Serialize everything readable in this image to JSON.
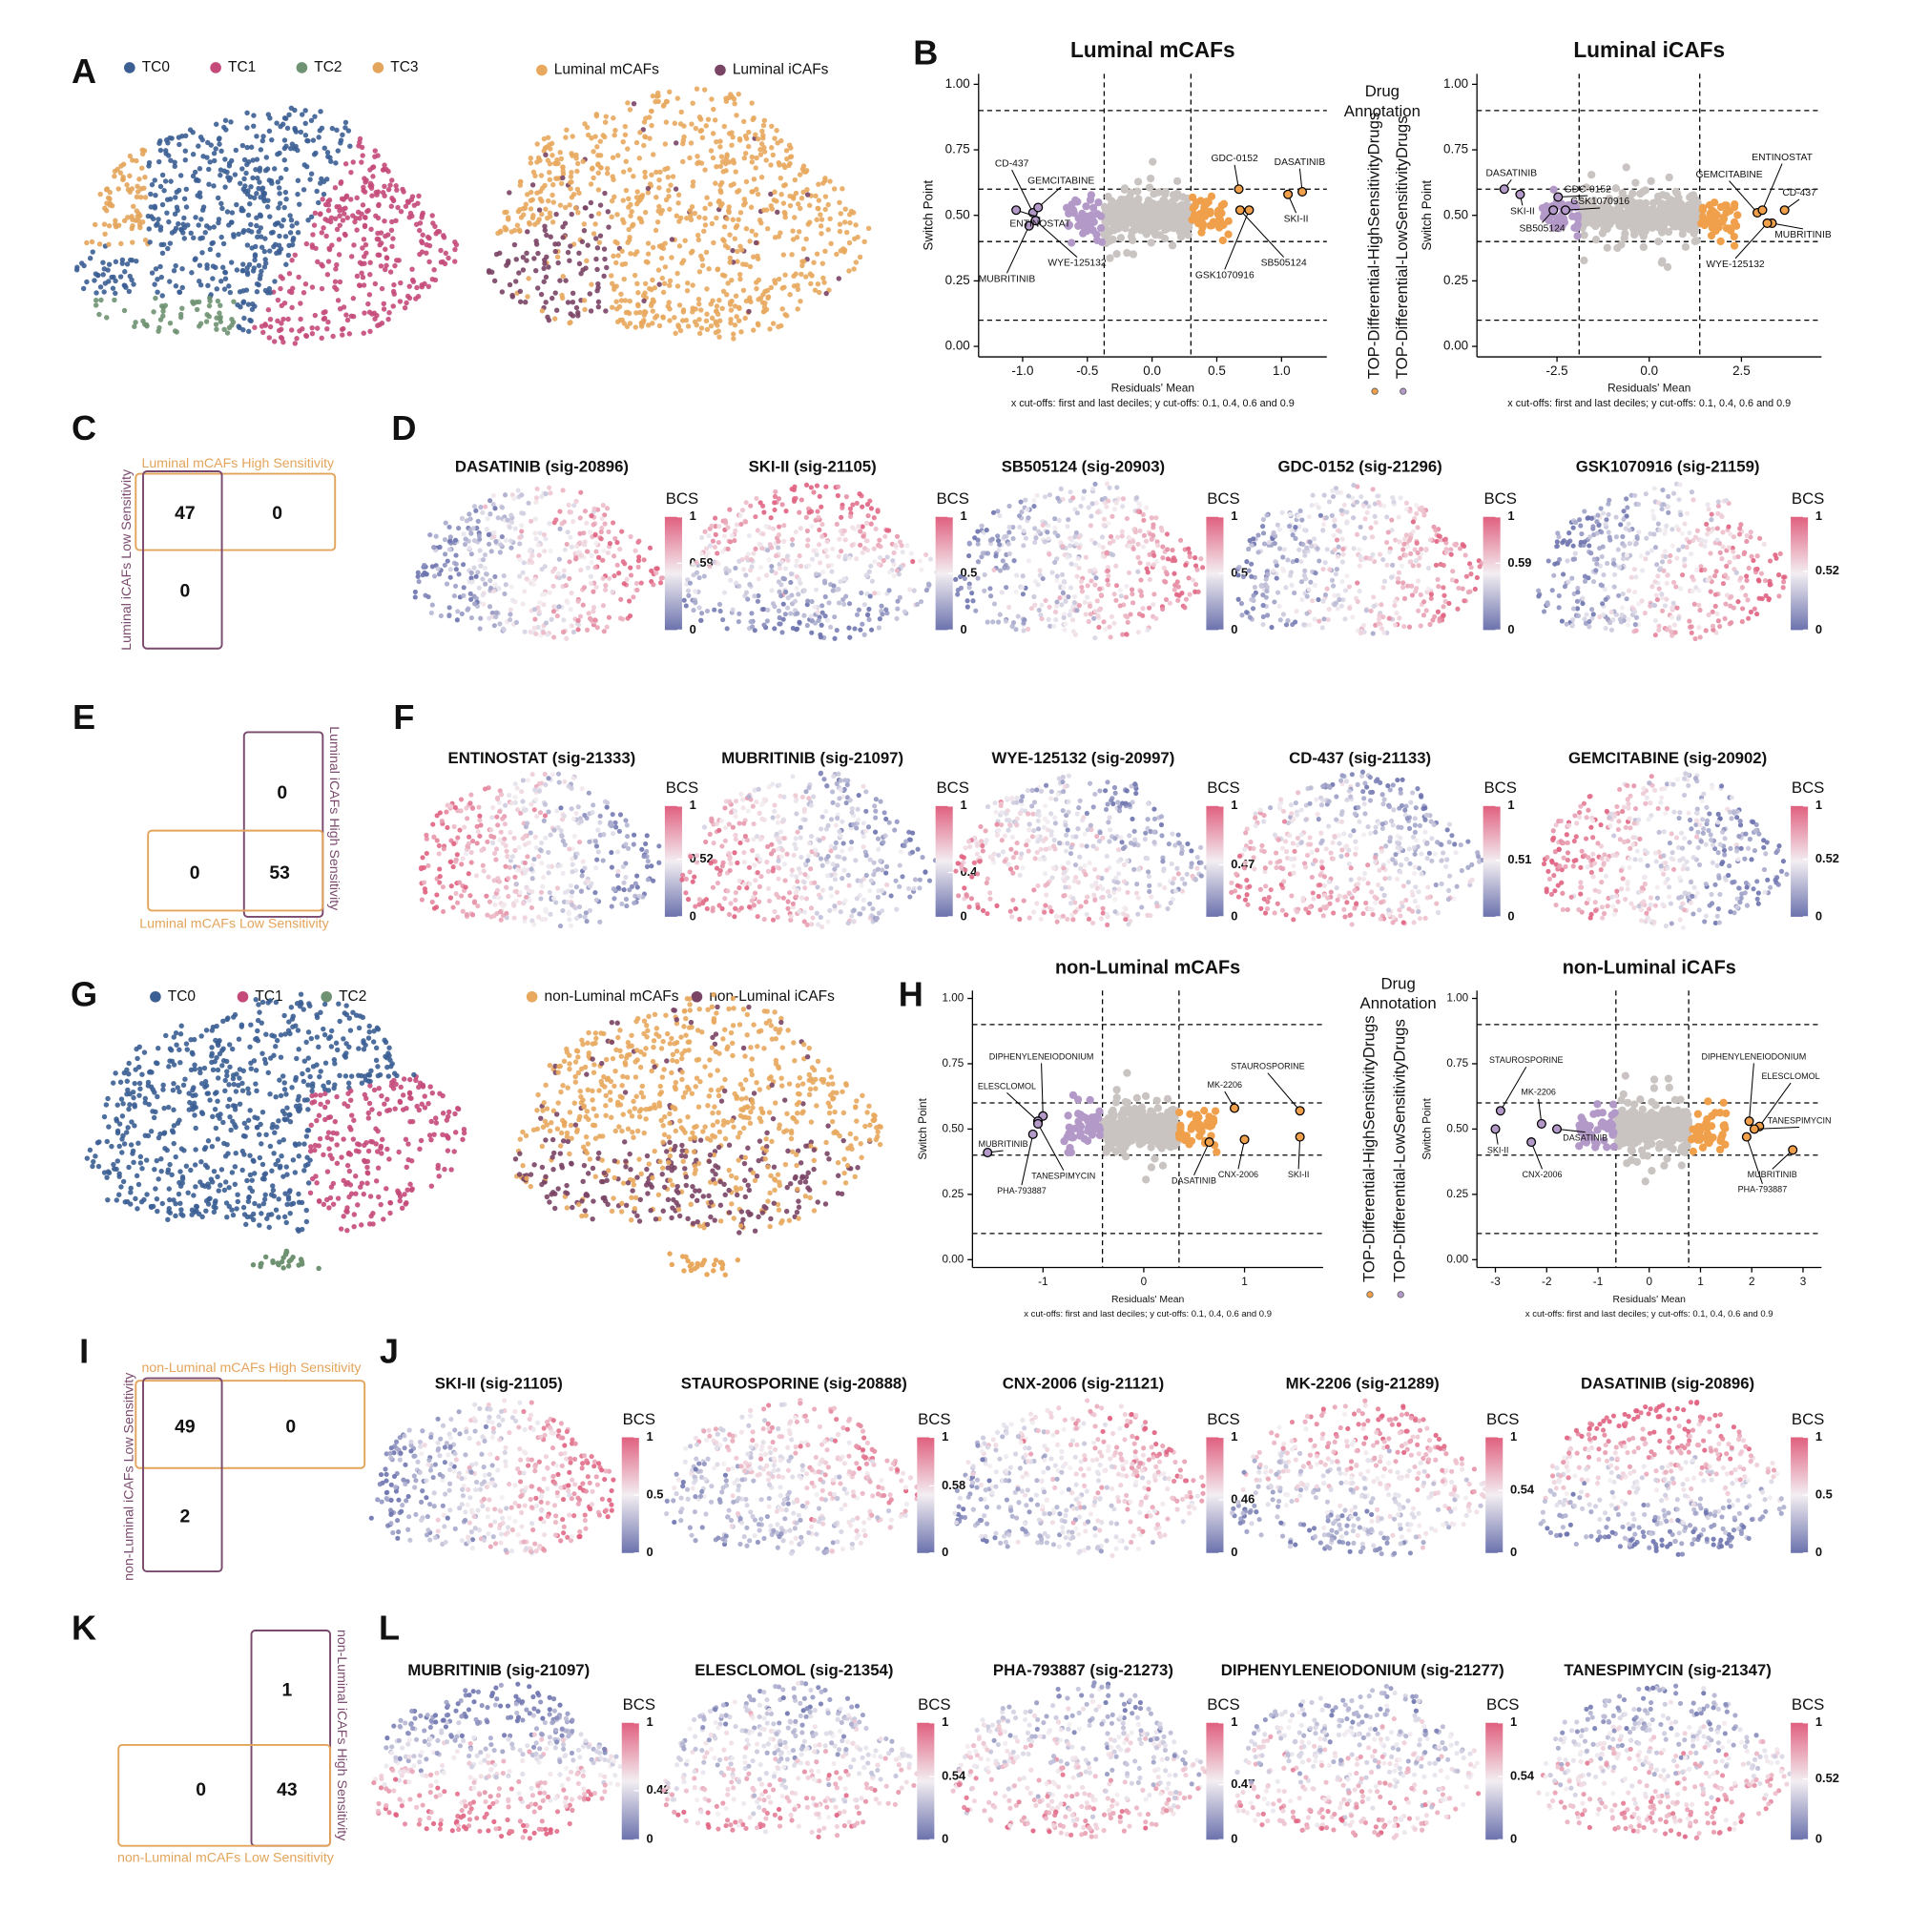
{
  "panel_labels": [
    "A",
    "B",
    "C",
    "D",
    "E",
    "F",
    "G",
    "H",
    "I",
    "J",
    "K",
    "L"
  ],
  "A": {
    "clusters": [
      {
        "name": "TC0",
        "color": "#3b5e93"
      },
      {
        "name": "TC1",
        "color": "#c44a7a"
      },
      {
        "name": "TC2",
        "color": "#6f9272"
      },
      {
        "name": "TC3",
        "color": "#e3a45b"
      }
    ],
    "groups": [
      {
        "name": "Luminal mCAFs",
        "color": "#e8a85e"
      },
      {
        "name": "Luminal iCAFs",
        "color": "#7a4465"
      }
    ]
  },
  "B": {
    "y_label": "Switch Point",
    "x_label": "Residuals' Mean",
    "caption": "x cut-offs: first and last deciles; y cut-offs: 0.1, 0.4, 0.6 and 0.9",
    "legend_title_1": "Drug",
    "legend_title_2": "Annotation",
    "legend": [
      {
        "name": "TOP-Differential-HighSensitivityDrugs",
        "color": "#f0a04b"
      },
      {
        "name": "TOP-Differential-LowSensitivityDrugs",
        "color": "#b399c8"
      }
    ],
    "plots": [
      {
        "title": "Luminal mCAFs",
        "xlim": [
          -1.34,
          1.35
        ],
        "ylim": [
          -0.04,
          1.04
        ],
        "xticks": [
          {
            "value": -1,
            "label": "-1.0"
          },
          {
            "value": -0.5,
            "label": "-0.5"
          },
          {
            "value": 0,
            "label": "0.0"
          },
          {
            "value": 0.5,
            "label": "0.5"
          },
          {
            "value": 1,
            "label": "1.0"
          }
        ],
        "yticks": [
          {
            "value": 0,
            "label": "0.00"
          },
          {
            "value": 0.25,
            "label": "0.25"
          },
          {
            "value": 0.5,
            "label": "0.50"
          },
          {
            "value": 0.75,
            "label": "0.75"
          },
          {
            "value": 1,
            "label": "1.00"
          }
        ],
        "xcut": [
          -0.37,
          0.3
        ],
        "ycut": [
          0.1,
          0.4,
          0.6,
          0.9
        ],
        "points": [
          {
            "label": "CD-437",
            "x": -0.92,
            "y": 0.51
          },
          {
            "label": "GEMCITABINE",
            "x": -0.88,
            "y": 0.53
          },
          {
            "label": "ENTINOSTAT",
            "x": -1.05,
            "y": 0.52
          },
          {
            "label": "MUBRITINIB",
            "x": -0.95,
            "y": 0.46
          },
          {
            "label": "WYE-125132",
            "x": -0.9,
            "y": 0.48
          },
          {
            "label": "GDC-0152",
            "x": 0.67,
            "y": 0.6
          },
          {
            "label": "DASATINIB",
            "x": 1.16,
            "y": 0.59
          },
          {
            "label": "SKI-II",
            "x": 1.05,
            "y": 0.58
          },
          {
            "label": "GSK1070916",
            "x": 0.75,
            "y": 0.52
          },
          {
            "label": "SB505124",
            "x": 0.68,
            "y": 0.52
          }
        ]
      },
      {
        "title": "Luminal iCAFs",
        "xlim": [
          -4.67,
          4.67
        ],
        "ylim": [
          -0.04,
          1.04
        ],
        "xticks": [
          {
            "value": -2.5,
            "label": "-2.5"
          },
          {
            "value": 0,
            "label": "0.0"
          },
          {
            "value": 2.5,
            "label": "2.5"
          }
        ],
        "yticks": [
          {
            "value": 0,
            "label": "0.00"
          },
          {
            "value": 0.25,
            "label": "0.25"
          },
          {
            "value": 0.5,
            "label": "0.50"
          },
          {
            "value": 0.75,
            "label": "0.75"
          },
          {
            "value": 1,
            "label": "1.00"
          }
        ],
        "xcut": [
          -1.9,
          1.37
        ],
        "ycut": [
          0.1,
          0.4,
          0.6,
          0.9
        ],
        "points": [
          {
            "label": "DASATINIB",
            "x": -3.93,
            "y": 0.6
          },
          {
            "label": "SKI-II",
            "x": -3.5,
            "y": 0.58
          },
          {
            "label": "SB505124",
            "x": -2.6,
            "y": 0.52
          },
          {
            "label": "GDC-0152",
            "x": -2.47,
            "y": 0.57
          },
          {
            "label": "GSK1070916",
            "x": -2.27,
            "y": 0.52
          },
          {
            "label": "GEMCITABINE",
            "x": 2.93,
            "y": 0.51
          },
          {
            "label": "ENTINOSTAT",
            "x": 3.07,
            "y": 0.52
          },
          {
            "label": "CD-437",
            "x": 3.67,
            "y": 0.52
          },
          {
            "label": "MUBRITINIB",
            "x": 3.33,
            "y": 0.47
          },
          {
            "label": "WYE-125132",
            "x": 3.2,
            "y": 0.47
          }
        ]
      }
    ]
  },
  "C": {
    "top_label": "Luminal mCAFs High Sensitivity",
    "side_label": "Luminal iCAFs Low Sensitivity",
    "counts": [
      47,
      0,
      0
    ]
  },
  "D": {
    "colorbar_title": "BCS",
    "maps": [
      {
        "title": "DASATINIB (sig-20896)",
        "cbar_ticks": [
          0,
          0.59,
          1
        ]
      },
      {
        "title": "SKI-II (sig-21105)",
        "cbar_ticks": [
          0,
          0.5,
          1
        ]
      },
      {
        "title": "SB505124 (sig-20903)",
        "cbar_ticks": [
          0,
          0.5,
          1
        ]
      },
      {
        "title": "GDC-0152 (sig-21296)",
        "cbar_ticks": [
          0,
          0.59,
          1
        ]
      },
      {
        "title": "GSK1070916 (sig-21159)",
        "cbar_ticks": [
          0,
          0.52,
          1
        ]
      }
    ]
  },
  "E": {
    "side_label": "Luminal iCAFs High Sensitivity",
    "bottom_label": "Luminal mCAFs Low Sensitivity",
    "counts": [
      0,
      0,
      53
    ]
  },
  "F": {
    "colorbar_title": "BCS",
    "maps": [
      {
        "title": "ENTINOSTAT (sig-21333)",
        "cbar_ticks": [
          0,
          0.52,
          1
        ]
      },
      {
        "title": "MUBRITINIB (sig-21097)",
        "cbar_ticks": [
          0,
          0.4,
          1
        ]
      },
      {
        "title": "WYE-125132 (sig-20997)",
        "cbar_ticks": [
          0,
          0.47,
          1
        ]
      },
      {
        "title": "CD-437 (sig-21133)",
        "cbar_ticks": [
          0,
          0.51,
          1
        ]
      },
      {
        "title": "GEMCITABINE (sig-20902)",
        "cbar_ticks": [
          0,
          0.52,
          1
        ]
      }
    ]
  },
  "G": {
    "clusters": [
      {
        "name": "TC0",
        "color": "#3b5e93"
      },
      {
        "name": "TC1",
        "color": "#c44a7a"
      },
      {
        "name": "TC2",
        "color": "#6f9272"
      }
    ],
    "groups": [
      {
        "name": "non-Luminal mCAFs",
        "color": "#e8a85e"
      },
      {
        "name": "non-Luminal iCAFs",
        "color": "#7a4465"
      }
    ]
  },
  "H": {
    "y_label": "Switch Point",
    "x_label": "Residuals' Mean",
    "caption": "x cut-offs: first and last deciles; y cut-offs: 0.1, 0.4, 0.6 and 0.9",
    "legend_title_1": "Drug",
    "legend_title_2": "Annotation",
    "legend": [
      {
        "name": "TOP-Differential-HighSensitivityDrugs",
        "color": "#f0a04b"
      },
      {
        "name": "TOP-Differential-LowSensitivityDrugs",
        "color": "#b399c8"
      }
    ],
    "plots": [
      {
        "title": "non-Luminal mCAFs",
        "xlim": [
          -1.7,
          1.78
        ],
        "ylim": [
          -0.03,
          1.03
        ],
        "xticks": [
          -1,
          0,
          1
        ],
        "yticks": [
          {
            "value": 0,
            "label": "0.00"
          },
          {
            "value": 0.25,
            "label": "0.25"
          },
          {
            "value": 0.5,
            "label": "0.50"
          },
          {
            "value": 0.75,
            "label": "0.75"
          },
          {
            "value": 1,
            "label": "1.00"
          }
        ],
        "xcut": [
          -0.41,
          0.35
        ],
        "ycut": [
          0.1,
          0.4,
          0.6,
          0.9
        ],
        "points": [
          {
            "label": "DIPHENYLENEIODONIUM",
            "x": -1.0,
            "y": 0.55
          },
          {
            "label": "ELESCLOMOL",
            "x": -1.05,
            "y": 0.53
          },
          {
            "label": "MUBRITINIB",
            "x": -1.55,
            "y": 0.41
          },
          {
            "label": "PHA-793887",
            "x": -1.1,
            "y": 0.48
          },
          {
            "label": "TANESPIMYCIN",
            "x": -1.05,
            "y": 0.52
          },
          {
            "label": "MK-2206",
            "x": 0.9,
            "y": 0.58
          },
          {
            "label": "STAUROSPORINE",
            "x": 1.55,
            "y": 0.57
          },
          {
            "label": "DASATINIB",
            "x": 0.65,
            "y": 0.45
          },
          {
            "label": "CNX-2006",
            "x": 1.0,
            "y": 0.46
          },
          {
            "label": "SKI-II",
            "x": 1.55,
            "y": 0.47
          }
        ]
      },
      {
        "title": "non-Luminal iCAFs",
        "xlim": [
          -3.36,
          3.36
        ],
        "ylim": [
          -0.03,
          1.03
        ],
        "xticks": [
          -3,
          -2,
          -1,
          0,
          1,
          2,
          3
        ],
        "yticks": [
          {
            "value": 0,
            "label": "0.00"
          },
          {
            "value": 0.25,
            "label": "0.25"
          },
          {
            "value": 0.5,
            "label": "0.50"
          },
          {
            "value": 0.75,
            "label": "0.75"
          },
          {
            "value": 1,
            "label": "1.00"
          }
        ],
        "xcut": [
          -0.65,
          0.77
        ],
        "ycut": [
          0.1,
          0.4,
          0.6,
          0.9
        ],
        "points": [
          {
            "label": "STAUROSPORINE",
            "x": -2.9,
            "y": 0.57
          },
          {
            "label": "MK-2206",
            "x": -2.1,
            "y": 0.52
          },
          {
            "label": "SKI-II",
            "x": -3.0,
            "y": 0.5
          },
          {
            "label": "CNX-2006",
            "x": -2.3,
            "y": 0.45
          },
          {
            "label": "DASATINIB",
            "x": -1.8,
            "y": 0.5
          },
          {
            "label": "DIPHENYLENEIODONIUM",
            "x": 1.95,
            "y": 0.53
          },
          {
            "label": "ELESCLOMOL",
            "x": 2.15,
            "y": 0.51
          },
          {
            "label": "TANESPIMYCIN",
            "x": 2.05,
            "y": 0.5
          },
          {
            "label": "PHA-793887",
            "x": 1.9,
            "y": 0.47
          },
          {
            "label": "MUBRITINIB",
            "x": 2.8,
            "y": 0.42
          }
        ]
      }
    ]
  },
  "I": {
    "top_label": "non-Luminal mCAFs High Sensitivity",
    "side_label": "non-Luminal iCAFs Low Sensitivity",
    "counts": [
      49,
      0,
      2
    ]
  },
  "J": {
    "colorbar_title": "BCS",
    "maps": [
      {
        "title": "SKI-II (sig-21105)",
        "cbar_ticks": [
          0,
          0.5,
          1
        ]
      },
      {
        "title": "STAUROSPORINE (sig-20888)",
        "cbar_ticks": [
          0,
          0.58,
          1
        ]
      },
      {
        "title": "CNX-2006 (sig-21121)",
        "cbar_ticks": [
          0,
          0.46,
          1
        ]
      },
      {
        "title": "MK-2206 (sig-21289)",
        "cbar_ticks": [
          0,
          0.54,
          1
        ]
      },
      {
        "title": "DASATINIB (sig-20896)",
        "cbar_ticks": [
          0,
          0.5,
          1
        ]
      }
    ]
  },
  "K": {
    "side_label": "non-Luminal iCAFs High Sensitivity",
    "bottom_label": "non-Luminal mCAFs Low Sensitivity",
    "counts": [
      1,
      0,
      43
    ]
  },
  "L": {
    "colorbar_title": "BCS",
    "maps": [
      {
        "title": "MUBRITINIB (sig-21097)",
        "cbar_ticks": [
          0,
          0.42,
          1
        ]
      },
      {
        "title": "ELESCLOMOL (sig-21354)",
        "cbar_ticks": [
          0,
          0.54,
          1
        ]
      },
      {
        "title": "PHA-793887 (sig-21273)",
        "cbar_ticks": [
          0,
          0.47,
          1
        ]
      },
      {
        "title": "DIPHENYLENEIODONIUM (sig-21277)",
        "cbar_ticks": [
          0,
          0.54,
          1
        ]
      },
      {
        "title": "TANESPIMYCIN (sig-21347)",
        "cbar_ticks": [
          0,
          0.52,
          1
        ]
      }
    ]
  }
}
